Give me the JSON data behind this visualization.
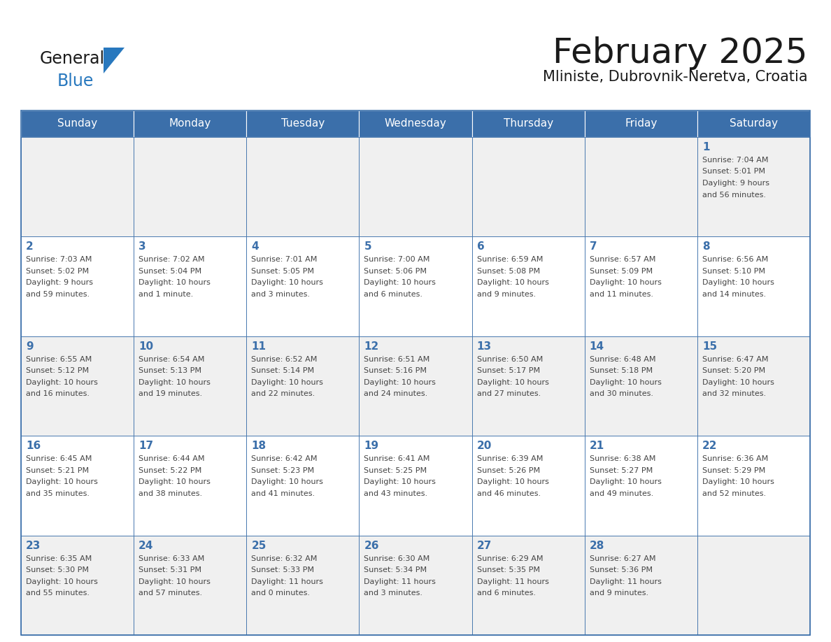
{
  "title": "February 2025",
  "subtitle": "Mliniste, Dubrovnik-Neretva, Croatia",
  "days_of_week": [
    "Sunday",
    "Monday",
    "Tuesday",
    "Wednesday",
    "Thursday",
    "Friday",
    "Saturday"
  ],
  "header_color": "#3b6faa",
  "header_text_color": "#ffffff",
  "cell_bg_even": "#f0f0f0",
  "cell_bg_odd": "#ffffff",
  "border_color": "#3b6faa",
  "grid_line_color": "#3b6faa",
  "title_color": "#1a1a1a",
  "subtitle_color": "#1a1a1a",
  "day_num_color": "#3b6faa",
  "cell_text_color": "#444444",
  "logo_general_color": "#1a1a1a",
  "logo_blue_color": "#2878be",
  "calendar_data": [
    [
      {
        "day": null,
        "info": ""
      },
      {
        "day": null,
        "info": ""
      },
      {
        "day": null,
        "info": ""
      },
      {
        "day": null,
        "info": ""
      },
      {
        "day": null,
        "info": ""
      },
      {
        "day": null,
        "info": ""
      },
      {
        "day": 1,
        "info": "Sunrise: 7:04 AM\nSunset: 5:01 PM\nDaylight: 9 hours\nand 56 minutes."
      }
    ],
    [
      {
        "day": 2,
        "info": "Sunrise: 7:03 AM\nSunset: 5:02 PM\nDaylight: 9 hours\nand 59 minutes."
      },
      {
        "day": 3,
        "info": "Sunrise: 7:02 AM\nSunset: 5:04 PM\nDaylight: 10 hours\nand 1 minute."
      },
      {
        "day": 4,
        "info": "Sunrise: 7:01 AM\nSunset: 5:05 PM\nDaylight: 10 hours\nand 3 minutes."
      },
      {
        "day": 5,
        "info": "Sunrise: 7:00 AM\nSunset: 5:06 PM\nDaylight: 10 hours\nand 6 minutes."
      },
      {
        "day": 6,
        "info": "Sunrise: 6:59 AM\nSunset: 5:08 PM\nDaylight: 10 hours\nand 9 minutes."
      },
      {
        "day": 7,
        "info": "Sunrise: 6:57 AM\nSunset: 5:09 PM\nDaylight: 10 hours\nand 11 minutes."
      },
      {
        "day": 8,
        "info": "Sunrise: 6:56 AM\nSunset: 5:10 PM\nDaylight: 10 hours\nand 14 minutes."
      }
    ],
    [
      {
        "day": 9,
        "info": "Sunrise: 6:55 AM\nSunset: 5:12 PM\nDaylight: 10 hours\nand 16 minutes."
      },
      {
        "day": 10,
        "info": "Sunrise: 6:54 AM\nSunset: 5:13 PM\nDaylight: 10 hours\nand 19 minutes."
      },
      {
        "day": 11,
        "info": "Sunrise: 6:52 AM\nSunset: 5:14 PM\nDaylight: 10 hours\nand 22 minutes."
      },
      {
        "day": 12,
        "info": "Sunrise: 6:51 AM\nSunset: 5:16 PM\nDaylight: 10 hours\nand 24 minutes."
      },
      {
        "day": 13,
        "info": "Sunrise: 6:50 AM\nSunset: 5:17 PM\nDaylight: 10 hours\nand 27 minutes."
      },
      {
        "day": 14,
        "info": "Sunrise: 6:48 AM\nSunset: 5:18 PM\nDaylight: 10 hours\nand 30 minutes."
      },
      {
        "day": 15,
        "info": "Sunrise: 6:47 AM\nSunset: 5:20 PM\nDaylight: 10 hours\nand 32 minutes."
      }
    ],
    [
      {
        "day": 16,
        "info": "Sunrise: 6:45 AM\nSunset: 5:21 PM\nDaylight: 10 hours\nand 35 minutes."
      },
      {
        "day": 17,
        "info": "Sunrise: 6:44 AM\nSunset: 5:22 PM\nDaylight: 10 hours\nand 38 minutes."
      },
      {
        "day": 18,
        "info": "Sunrise: 6:42 AM\nSunset: 5:23 PM\nDaylight: 10 hours\nand 41 minutes."
      },
      {
        "day": 19,
        "info": "Sunrise: 6:41 AM\nSunset: 5:25 PM\nDaylight: 10 hours\nand 43 minutes."
      },
      {
        "day": 20,
        "info": "Sunrise: 6:39 AM\nSunset: 5:26 PM\nDaylight: 10 hours\nand 46 minutes."
      },
      {
        "day": 21,
        "info": "Sunrise: 6:38 AM\nSunset: 5:27 PM\nDaylight: 10 hours\nand 49 minutes."
      },
      {
        "day": 22,
        "info": "Sunrise: 6:36 AM\nSunset: 5:29 PM\nDaylight: 10 hours\nand 52 minutes."
      }
    ],
    [
      {
        "day": 23,
        "info": "Sunrise: 6:35 AM\nSunset: 5:30 PM\nDaylight: 10 hours\nand 55 minutes."
      },
      {
        "day": 24,
        "info": "Sunrise: 6:33 AM\nSunset: 5:31 PM\nDaylight: 10 hours\nand 57 minutes."
      },
      {
        "day": 25,
        "info": "Sunrise: 6:32 AM\nSunset: 5:33 PM\nDaylight: 11 hours\nand 0 minutes."
      },
      {
        "day": 26,
        "info": "Sunrise: 6:30 AM\nSunset: 5:34 PM\nDaylight: 11 hours\nand 3 minutes."
      },
      {
        "day": 27,
        "info": "Sunrise: 6:29 AM\nSunset: 5:35 PM\nDaylight: 11 hours\nand 6 minutes."
      },
      {
        "day": 28,
        "info": "Sunrise: 6:27 AM\nSunset: 5:36 PM\nDaylight: 11 hours\nand 9 minutes."
      },
      {
        "day": null,
        "info": ""
      }
    ]
  ]
}
